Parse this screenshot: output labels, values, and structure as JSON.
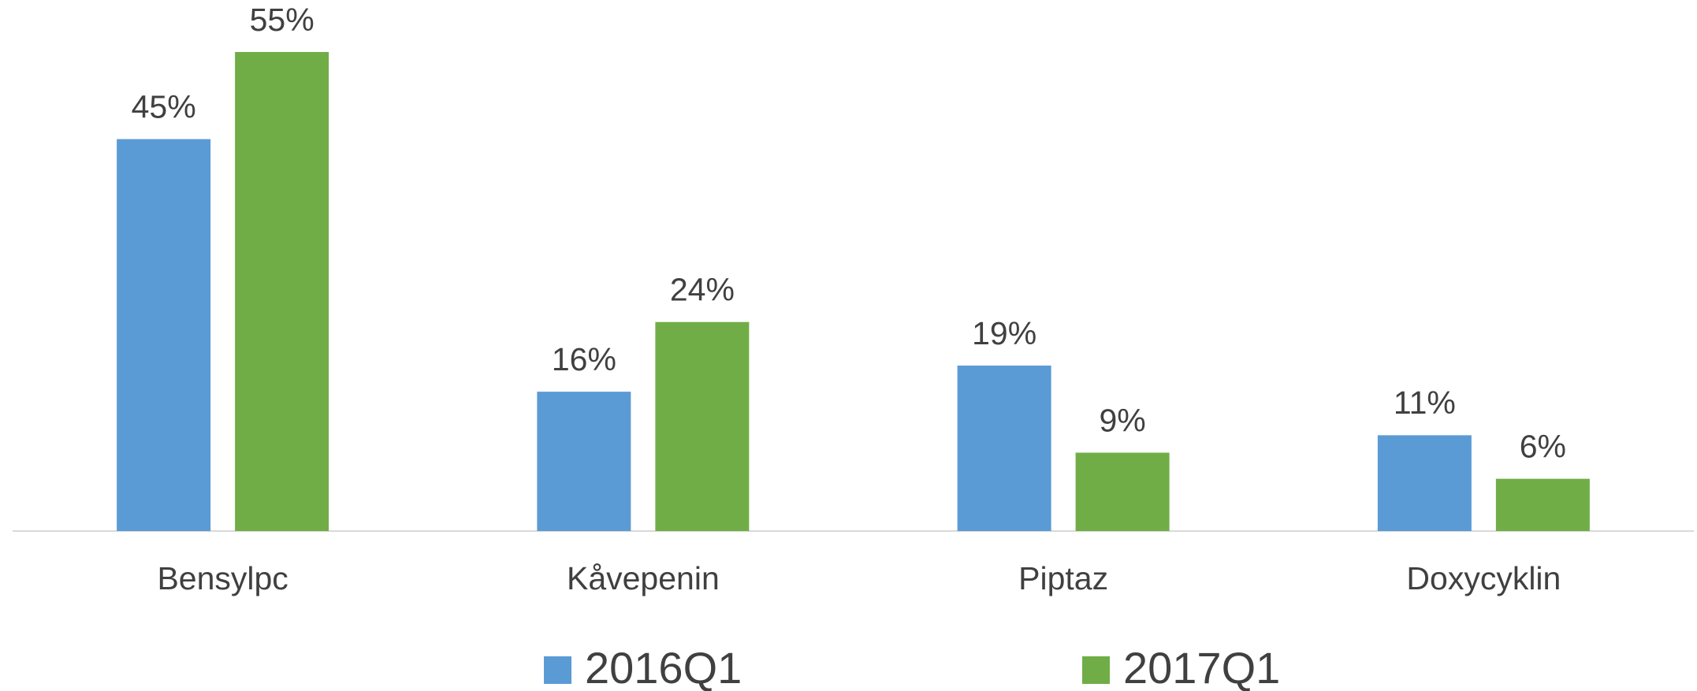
{
  "chart_data": {
    "type": "bar",
    "categories": [
      "Bensylpc",
      "Kåvepenin",
      "Piptaz",
      "Doxycyklin"
    ],
    "series": [
      {
        "name": "2016Q1",
        "color": "#5b9bd5",
        "values": [
          45,
          16,
          19,
          11
        ],
        "value_labels": [
          "45%",
          "16%",
          "19%",
          "11%"
        ]
      },
      {
        "name": "2017Q1",
        "color": "#70ad47",
        "values": [
          55,
          24,
          9,
          6
        ],
        "value_labels": [
          "55%",
          "24%",
          "9%",
          "6%"
        ]
      }
    ],
    "legend": "bottom"
  }
}
